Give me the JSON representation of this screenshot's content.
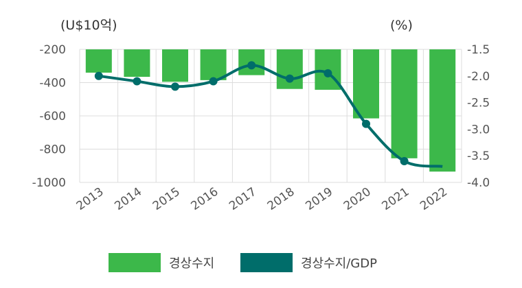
{
  "chart_data": {
    "type": "bar+line",
    "categories": [
      "2013",
      "2014",
      "2015",
      "2016",
      "2017",
      "2018",
      "2019",
      "2020",
      "2021",
      "2022"
    ],
    "series": [
      {
        "name": "경상수지",
        "type": "bar",
        "axis": "left",
        "color": "#3cb84a",
        "values": [
          -340,
          -365,
          -395,
          -385,
          -355,
          -438,
          -443,
          -615,
          -855,
          -935
        ]
      },
      {
        "name": "경상수지/GDP",
        "type": "line",
        "axis": "right",
        "color": "#006d6a",
        "values": [
          -2.0,
          -2.1,
          -2.2,
          -2.1,
          -1.8,
          -2.05,
          -1.95,
          -2.9,
          -3.6,
          -3.7
        ]
      }
    ],
    "left_axis": {
      "unit_label": "(U$10억)",
      "range": [
        -1000,
        -200
      ],
      "ticks": [
        -200,
        -400,
        -600,
        -800,
        -1000
      ]
    },
    "right_axis": {
      "unit_label": "(%)",
      "range": [
        -4.0,
        -1.5
      ],
      "ticks": [
        "-1.5",
        "-2.0",
        "-2.5",
        "-3.0",
        "-3.5",
        "-4.0"
      ]
    },
    "grid": true,
    "legend_position": "bottom"
  }
}
